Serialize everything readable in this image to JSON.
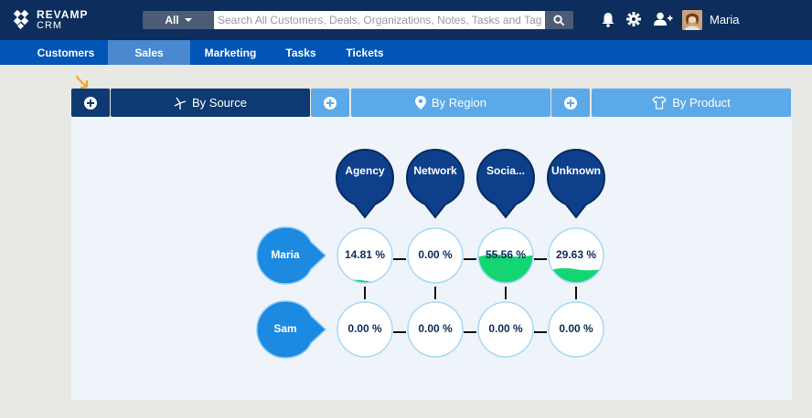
{
  "app": {
    "logo_line1": "REVAMP",
    "logo_line2": "CRM",
    "user_name": "Maria"
  },
  "search": {
    "scope": "All",
    "placeholder": "Search All Customers, Deals, Organizations, Notes, Tasks and Tags",
    "icons": [
      "search-icon"
    ]
  },
  "top_icons": [
    "bell-icon",
    "gear-icon",
    "add-user-icon"
  ],
  "nav": {
    "items": [
      {
        "label": "Customers"
      },
      {
        "label": "Sales"
      },
      {
        "label": "Marketing"
      },
      {
        "label": "Tasks"
      },
      {
        "label": "Tickets"
      }
    ],
    "active": "Sales"
  },
  "tabs": {
    "items": [
      {
        "label": "By Source",
        "icon": "windmill-icon",
        "style": "dark"
      },
      {
        "label": "By Region",
        "icon": "location-pin-icon",
        "style": "light"
      },
      {
        "label": "By Product",
        "icon": "shirt-icon",
        "style": "light"
      }
    ]
  },
  "matrix": {
    "columns": [
      "Agency",
      "Network",
      "Socia...",
      "Unknown"
    ],
    "rows": [
      {
        "name": "Maria",
        "values": [
          "14.81 %",
          "0.00 %",
          "55.56 %",
          "29.63 %"
        ],
        "fill": [
          0.04,
          0,
          0.5,
          0.25
        ]
      },
      {
        "name": "Sam",
        "values": [
          "0.00 %",
          "0.00 %",
          "0.00 %",
          "0.00 %"
        ],
        "fill": [
          0,
          0,
          0,
          0
        ]
      }
    ]
  },
  "colors": {
    "topbar": "#0d2d5c",
    "navbar": "#0055b6",
    "nav_active": "#4a88cf",
    "pin_dark": "#0d3f8a",
    "person": "#1b8ae0",
    "fill_green": "#13d672",
    "accent_arrow": "#f5a623"
  }
}
